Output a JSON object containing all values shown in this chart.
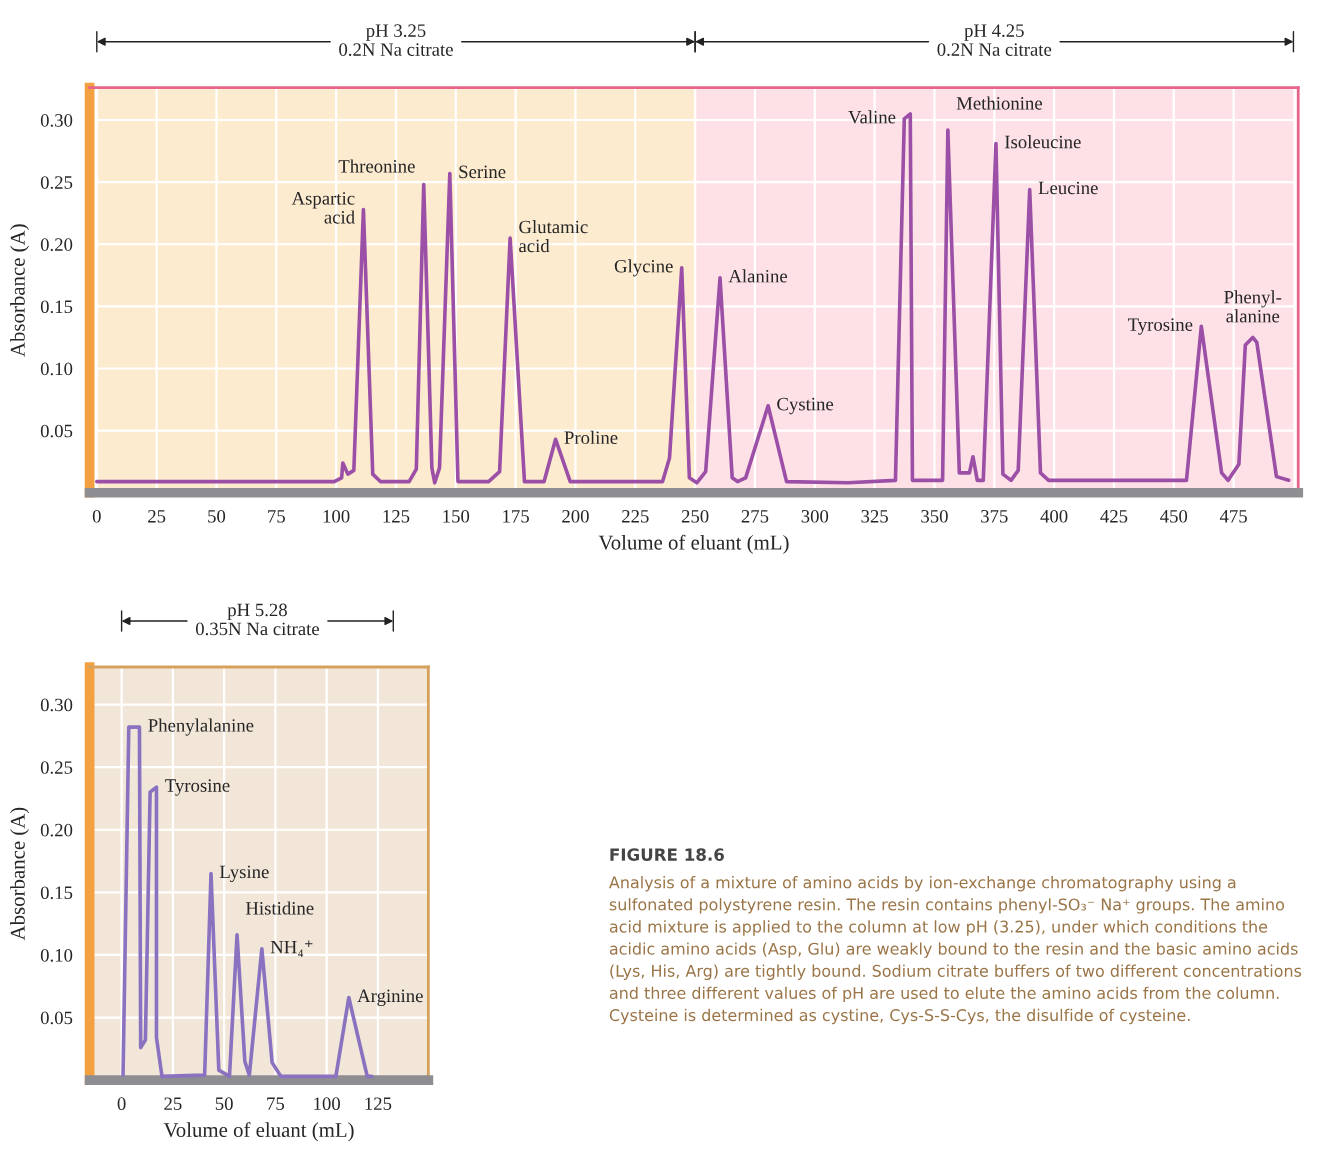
{
  "chart_data": [
    {
      "type": "line",
      "xlabel": "Volume of eluant (mL)",
      "ylabel": "Absorbance (A)",
      "xlim": [
        -3,
        502
      ],
      "ylim": [
        0,
        0.326
      ],
      "xticks": [
        0,
        25,
        50,
        75,
        100,
        125,
        150,
        175,
        200,
        225,
        250,
        275,
        300,
        325,
        350,
        375,
        400,
        425,
        450,
        475
      ],
      "yticks": [
        {
          "value": 0.05,
          "label": "0.05"
        },
        {
          "value": 0.1,
          "label": "0.10"
        },
        {
          "value": 0.15,
          "label": "0.15"
        },
        {
          "value": 0.2,
          "label": "0.20"
        },
        {
          "value": 0.25,
          "label": "0.25"
        },
        {
          "value": 0.3,
          "label": "0.30"
        }
      ],
      "grid": true,
      "bands": [
        {
          "axis": "x",
          "from": 0,
          "to": 250,
          "label": "pH 3.25\n0.2N Na citrate",
          "color": "#fdebcf"
        },
        {
          "axis": "x",
          "from": 250,
          "to": 500,
          "label": "pH 4.25\n0.2N Na citrate",
          "color": "#fde1e6"
        }
      ],
      "series": [
        {
          "color": "#9b4fa6",
          "x": [
            0,
            99.2,
            102.3,
            102.8,
            104.9,
            107.4,
            111.4,
            115.3,
            118.5,
            130.5,
            133.5,
            136.6,
            140,
            141.2,
            143.2,
            147.5,
            150.9,
            163.7,
            168.3,
            172.7,
            178.7,
            186.9,
            191.7,
            197.8,
            236.4,
            239.3,
            244.4,
            247.6,
            250.7,
            254.4,
            260.4,
            265.5,
            267.7,
            271.1,
            280.5,
            288.2,
            313.8,
            333.7,
            337.4,
            339.9,
            340.8,
            353.4,
            355.6,
            360.4,
            364.6,
            366.1,
            367.9,
            370.4,
            375.7,
            378.6,
            382,
            385,
            389.8,
            394.3,
            397.7,
            455.3,
            461.5,
            470,
            472.7,
            477.2,
            479.9,
            483,
            484.7,
            492.9,
            498
          ],
          "values": [
            0.009,
            0.009,
            0.012,
            0.024,
            0.015,
            0.018,
            0.228,
            0.015,
            0.009,
            0.009,
            0.019,
            0.248,
            0.02,
            0.008,
            0.02,
            0.257,
            0.009,
            0.009,
            0.017,
            0.205,
            0.009,
            0.009,
            0.043,
            0.009,
            0.009,
            0.028,
            0.181,
            0.012,
            0.008,
            0.017,
            0.173,
            0.012,
            0.009,
            0.012,
            0.07,
            0.009,
            0.008,
            0.01,
            0.301,
            0.305,
            0.01,
            0.01,
            0.292,
            0.016,
            0.016,
            0.029,
            0.01,
            0.01,
            0.281,
            0.015,
            0.01,
            0.018,
            0.244,
            0.016,
            0.01,
            0.01,
            0.134,
            0.016,
            0.01,
            0.023,
            0.119,
            0.125,
            0.121,
            0.013,
            0.01
          ]
        }
      ],
      "annotations": [
        {
          "text": "Aspartic\nacid",
          "x": 111.4,
          "y": 0.228
        },
        {
          "text": "Threonine",
          "x": 136.6,
          "y": 0.248
        },
        {
          "text": "Serine",
          "x": 147.5,
          "y": 0.257
        },
        {
          "text": "Glutamic\nacid",
          "x": 172.7,
          "y": 0.205
        },
        {
          "text": "Proline",
          "x": 191.7,
          "y": 0.043
        },
        {
          "text": "Glycine",
          "x": 244.4,
          "y": 0.181
        },
        {
          "text": "Alanine",
          "x": 260.4,
          "y": 0.173
        },
        {
          "text": "Cystine",
          "x": 280.5,
          "y": 0.07
        },
        {
          "text": "Valine",
          "x": 337.4,
          "y": 0.301
        },
        {
          "text": "Methionine",
          "x": 355.6,
          "y": 0.292
        },
        {
          "text": "Isoleucine",
          "x": 375.7,
          "y": 0.281
        },
        {
          "text": "Leucine",
          "x": 389.8,
          "y": 0.244
        },
        {
          "text": "Tyrosine",
          "x": 461.5,
          "y": 0.134
        },
        {
          "text": "Phenyl-\nalanine",
          "x": 483,
          "y": 0.125
        }
      ]
    },
    {
      "type": "line",
      "xlabel": "Volume of eluant (mL)",
      "ylabel": "Absorbance (A)",
      "xlim": [
        -15.6,
        149.6
      ],
      "ylim": [
        0,
        0.33
      ],
      "xticks": [
        0,
        25,
        50,
        75,
        100,
        125
      ],
      "yticks": [
        {
          "value": 0.05,
          "label": "0.05"
        },
        {
          "value": 0.1,
          "label": "0.10"
        },
        {
          "value": 0.15,
          "label": "0.15"
        },
        {
          "value": 0.2,
          "label": "0.20"
        },
        {
          "value": 0.25,
          "label": "0.25"
        },
        {
          "value": 0.3,
          "label": "0.30"
        }
      ],
      "grid": true,
      "series": [
        {
          "color": "#8a72c0",
          "x": [
            0.7,
            3.5,
            8.7,
            9.3,
            11.6,
            13.9,
            17,
            17,
            19.7,
            40.5,
            43.6,
            47.4,
            52.6,
            56.3,
            60.1,
            62.3,
            68.4,
            73.4,
            77.7,
            104.5,
            110.8,
            119.8,
            122
          ],
          "values": [
            0.004,
            0.282,
            0.282,
            0.026,
            0.032,
            0.23,
            0.234,
            0.034,
            0.003,
            0.004,
            0.165,
            0.008,
            0.003,
            0.116,
            0.015,
            0.004,
            0.105,
            0.014,
            0.003,
            0.003,
            0.066,
            0.003,
            0.003
          ]
        }
      ],
      "annotations": [
        {
          "text": "Phenylalanine",
          "x": 8.7,
          "y": 0.282
        },
        {
          "text": "Tyrosine",
          "x": 17,
          "y": 0.234
        },
        {
          "text": "Lysine",
          "x": 43.6,
          "y": 0.165
        },
        {
          "text": "Histidine",
          "x": 56.3,
          "y": 0.116
        },
        {
          "text": "NH₄⁺",
          "x": 68.4,
          "y": 0.105
        },
        {
          "text": "Arginine",
          "x": 110.8,
          "y": 0.066
        },
        "pH 5.28\n0.35N Na citrate",
        "FIGURE 18.6",
        "Analysis of a mixture of amino acids by ion-exchange chromatography using a sulfonated polystyrene resin. The resin contains phenyl-SO₃⁻ Na⁺ groups. The amino acid mixture is applied to the column at low pH (3.25), under which conditions the acidic amino acids (Asp, Glu) are weakly bound to the resin and the basic amino acids (Lys, His, Arg) are tightly bound. Sodium citrate buffers of two different concentrations and three different values of pH are used to elute the amino acids from the column. Cysteine is determined as cystine, Cys-S-S-Cys, the disulfide of cysteine."
      ]
    }
  ]
}
